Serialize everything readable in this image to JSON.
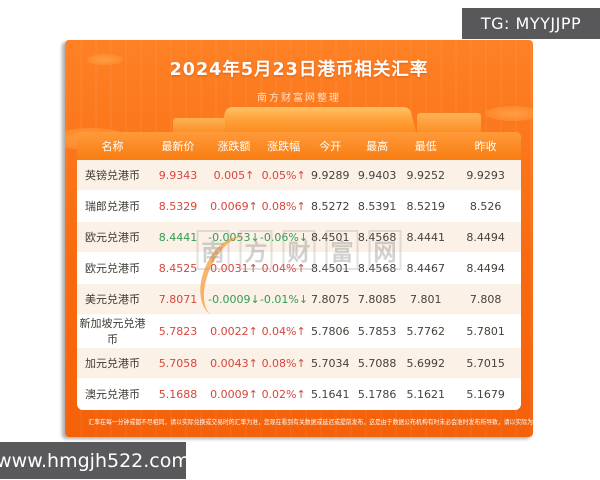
{
  "overlays": {
    "tg_label": "TG: MYYJJPP",
    "url_label": "www.hmgjh522.com"
  },
  "poster": {
    "title": "2024年5月23日港币相关汇率",
    "subtitle": "南方财富网整理",
    "watermark": "南方财富网",
    "disclaimer": "汇率在每一分钟或都不尽相同，请以实际兑换或交易时的汇率为准，您现在看到有关数据或延迟或提前发布，这是由于数据公布机构有时未必会准时发布所导致，请以实际为准。",
    "colors": {
      "banner": "#f96a10",
      "table_header": "#f87d12",
      "up": "#d8453c",
      "down": "#2f9d52",
      "alt_row": "#fcf1e7",
      "overlay_box": "#58585a"
    }
  },
  "chart_data": {
    "type": "table",
    "title": "2024年5月23日港币相关汇率",
    "columns": [
      "名称",
      "最新价",
      "涨跌额",
      "涨跌幅",
      "今开",
      "最高",
      "最低",
      "昨收"
    ],
    "rows": [
      {
        "name": "英镑兑港币",
        "last": "9.9343",
        "change": "0.005↑",
        "pct": "0.05%↑",
        "open": "9.9289",
        "high": "9.9403",
        "low": "9.9252",
        "prev": "9.9293",
        "dir": "up",
        "last_dir": "up"
      },
      {
        "name": "瑞郎兑港币",
        "last": "8.5329",
        "change": "0.0069↑",
        "pct": "0.08%↑",
        "open": "8.5272",
        "high": "8.5391",
        "low": "8.5219",
        "prev": "8.526",
        "dir": "up",
        "last_dir": "up"
      },
      {
        "name": "欧元兑港币",
        "last": "8.4441",
        "change": "-0.0053↓",
        "pct": "-0.06%↓",
        "open": "8.4501",
        "high": "8.4568",
        "low": "8.4441",
        "prev": "8.4494",
        "dir": "down",
        "last_dir": "down"
      },
      {
        "name": "欧元兑港币",
        "last": "8.4525",
        "change": "0.0031↑",
        "pct": "0.04%↑",
        "open": "8.4501",
        "high": "8.4568",
        "low": "8.4467",
        "prev": "8.4494",
        "dir": "up",
        "last_dir": "up"
      },
      {
        "name": "美元兑港币",
        "last": "7.8071",
        "change": "-0.0009↓",
        "pct": "-0.01%↓",
        "open": "7.8075",
        "high": "7.8085",
        "low": "7.801",
        "prev": "7.808",
        "dir": "down",
        "last_dir": "up"
      },
      {
        "name": "新加坡元兑港币",
        "last": "5.7823",
        "change": "0.0022↑",
        "pct": "0.04%↑",
        "open": "5.7806",
        "high": "5.7853",
        "low": "5.7762",
        "prev": "5.7801",
        "dir": "up",
        "last_dir": "up"
      },
      {
        "name": "加元兑港币",
        "last": "5.7058",
        "change": "0.0043↑",
        "pct": "0.08%↑",
        "open": "5.7034",
        "high": "5.7088",
        "low": "5.6992",
        "prev": "5.7015",
        "dir": "up",
        "last_dir": "up"
      },
      {
        "name": "澳元兑港币",
        "last": "5.1688",
        "change": "0.0009↑",
        "pct": "0.02%↑",
        "open": "5.1641",
        "high": "5.1786",
        "low": "5.1621",
        "prev": "5.1679",
        "dir": "up",
        "last_dir": "up"
      }
    ]
  }
}
